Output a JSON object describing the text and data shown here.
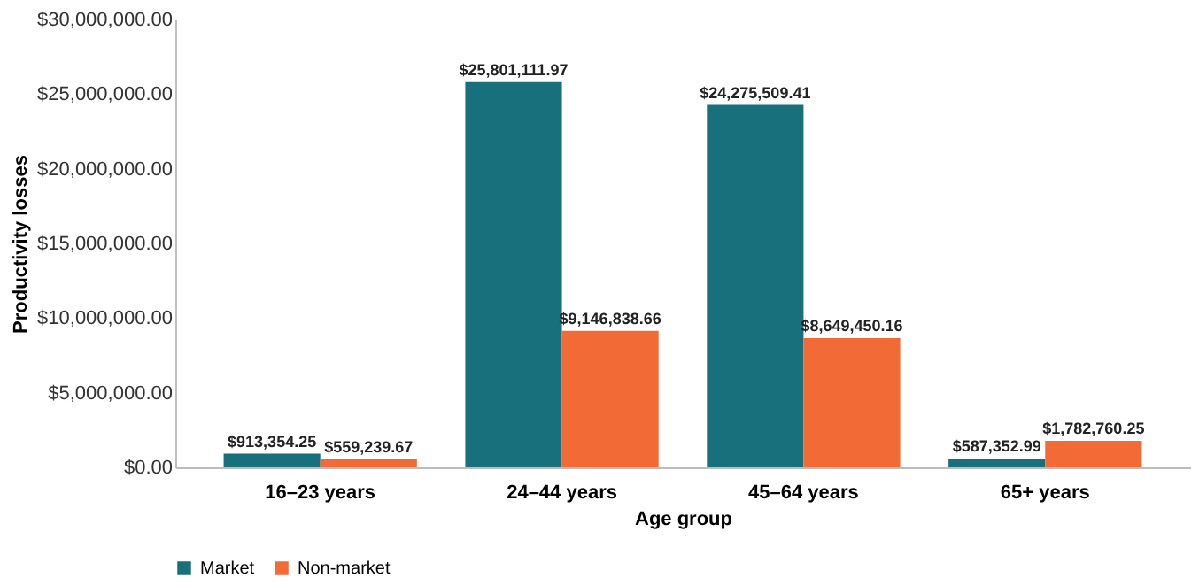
{
  "chart_data": {
    "type": "bar",
    "xlabel": "Age group",
    "ylabel": "Productivity losses",
    "categories": [
      "16–23 years",
      "24–44 years",
      "45–64 years",
      "65+ years"
    ],
    "series": [
      {
        "name": "Market",
        "color": "#17707c",
        "values": [
          913354.25,
          25801111.97,
          24275509.41,
          587352.99
        ],
        "value_labels": [
          "$913,354.25",
          "$25,801,111.97",
          "$24,275,509.41",
          "$587,352.99"
        ]
      },
      {
        "name": "Non-market",
        "color": "#f26a36",
        "values": [
          559239.67,
          9146838.66,
          8649450.16,
          1782760.25
        ],
        "value_labels": [
          "$559,239.67",
          "$9,146,838.66",
          "$8,649,450.16",
          "$1,782,760.25"
        ]
      }
    ],
    "ylim": [
      0,
      30000000
    ],
    "yticks": [
      {
        "value": 0,
        "label": "$0.00"
      },
      {
        "value": 5000000,
        "label": "$5,000,000.00"
      },
      {
        "value": 10000000,
        "label": "$10,000,000.00"
      },
      {
        "value": 15000000,
        "label": "$15,000,000.00"
      },
      {
        "value": 20000000,
        "label": "$20,000,000.00"
      },
      {
        "value": 25000000,
        "label": "$25,000,000.00"
      },
      {
        "value": 30000000,
        "label": "$30,000,000.00"
      }
    ],
    "grid": false,
    "legend": "bottom"
  }
}
